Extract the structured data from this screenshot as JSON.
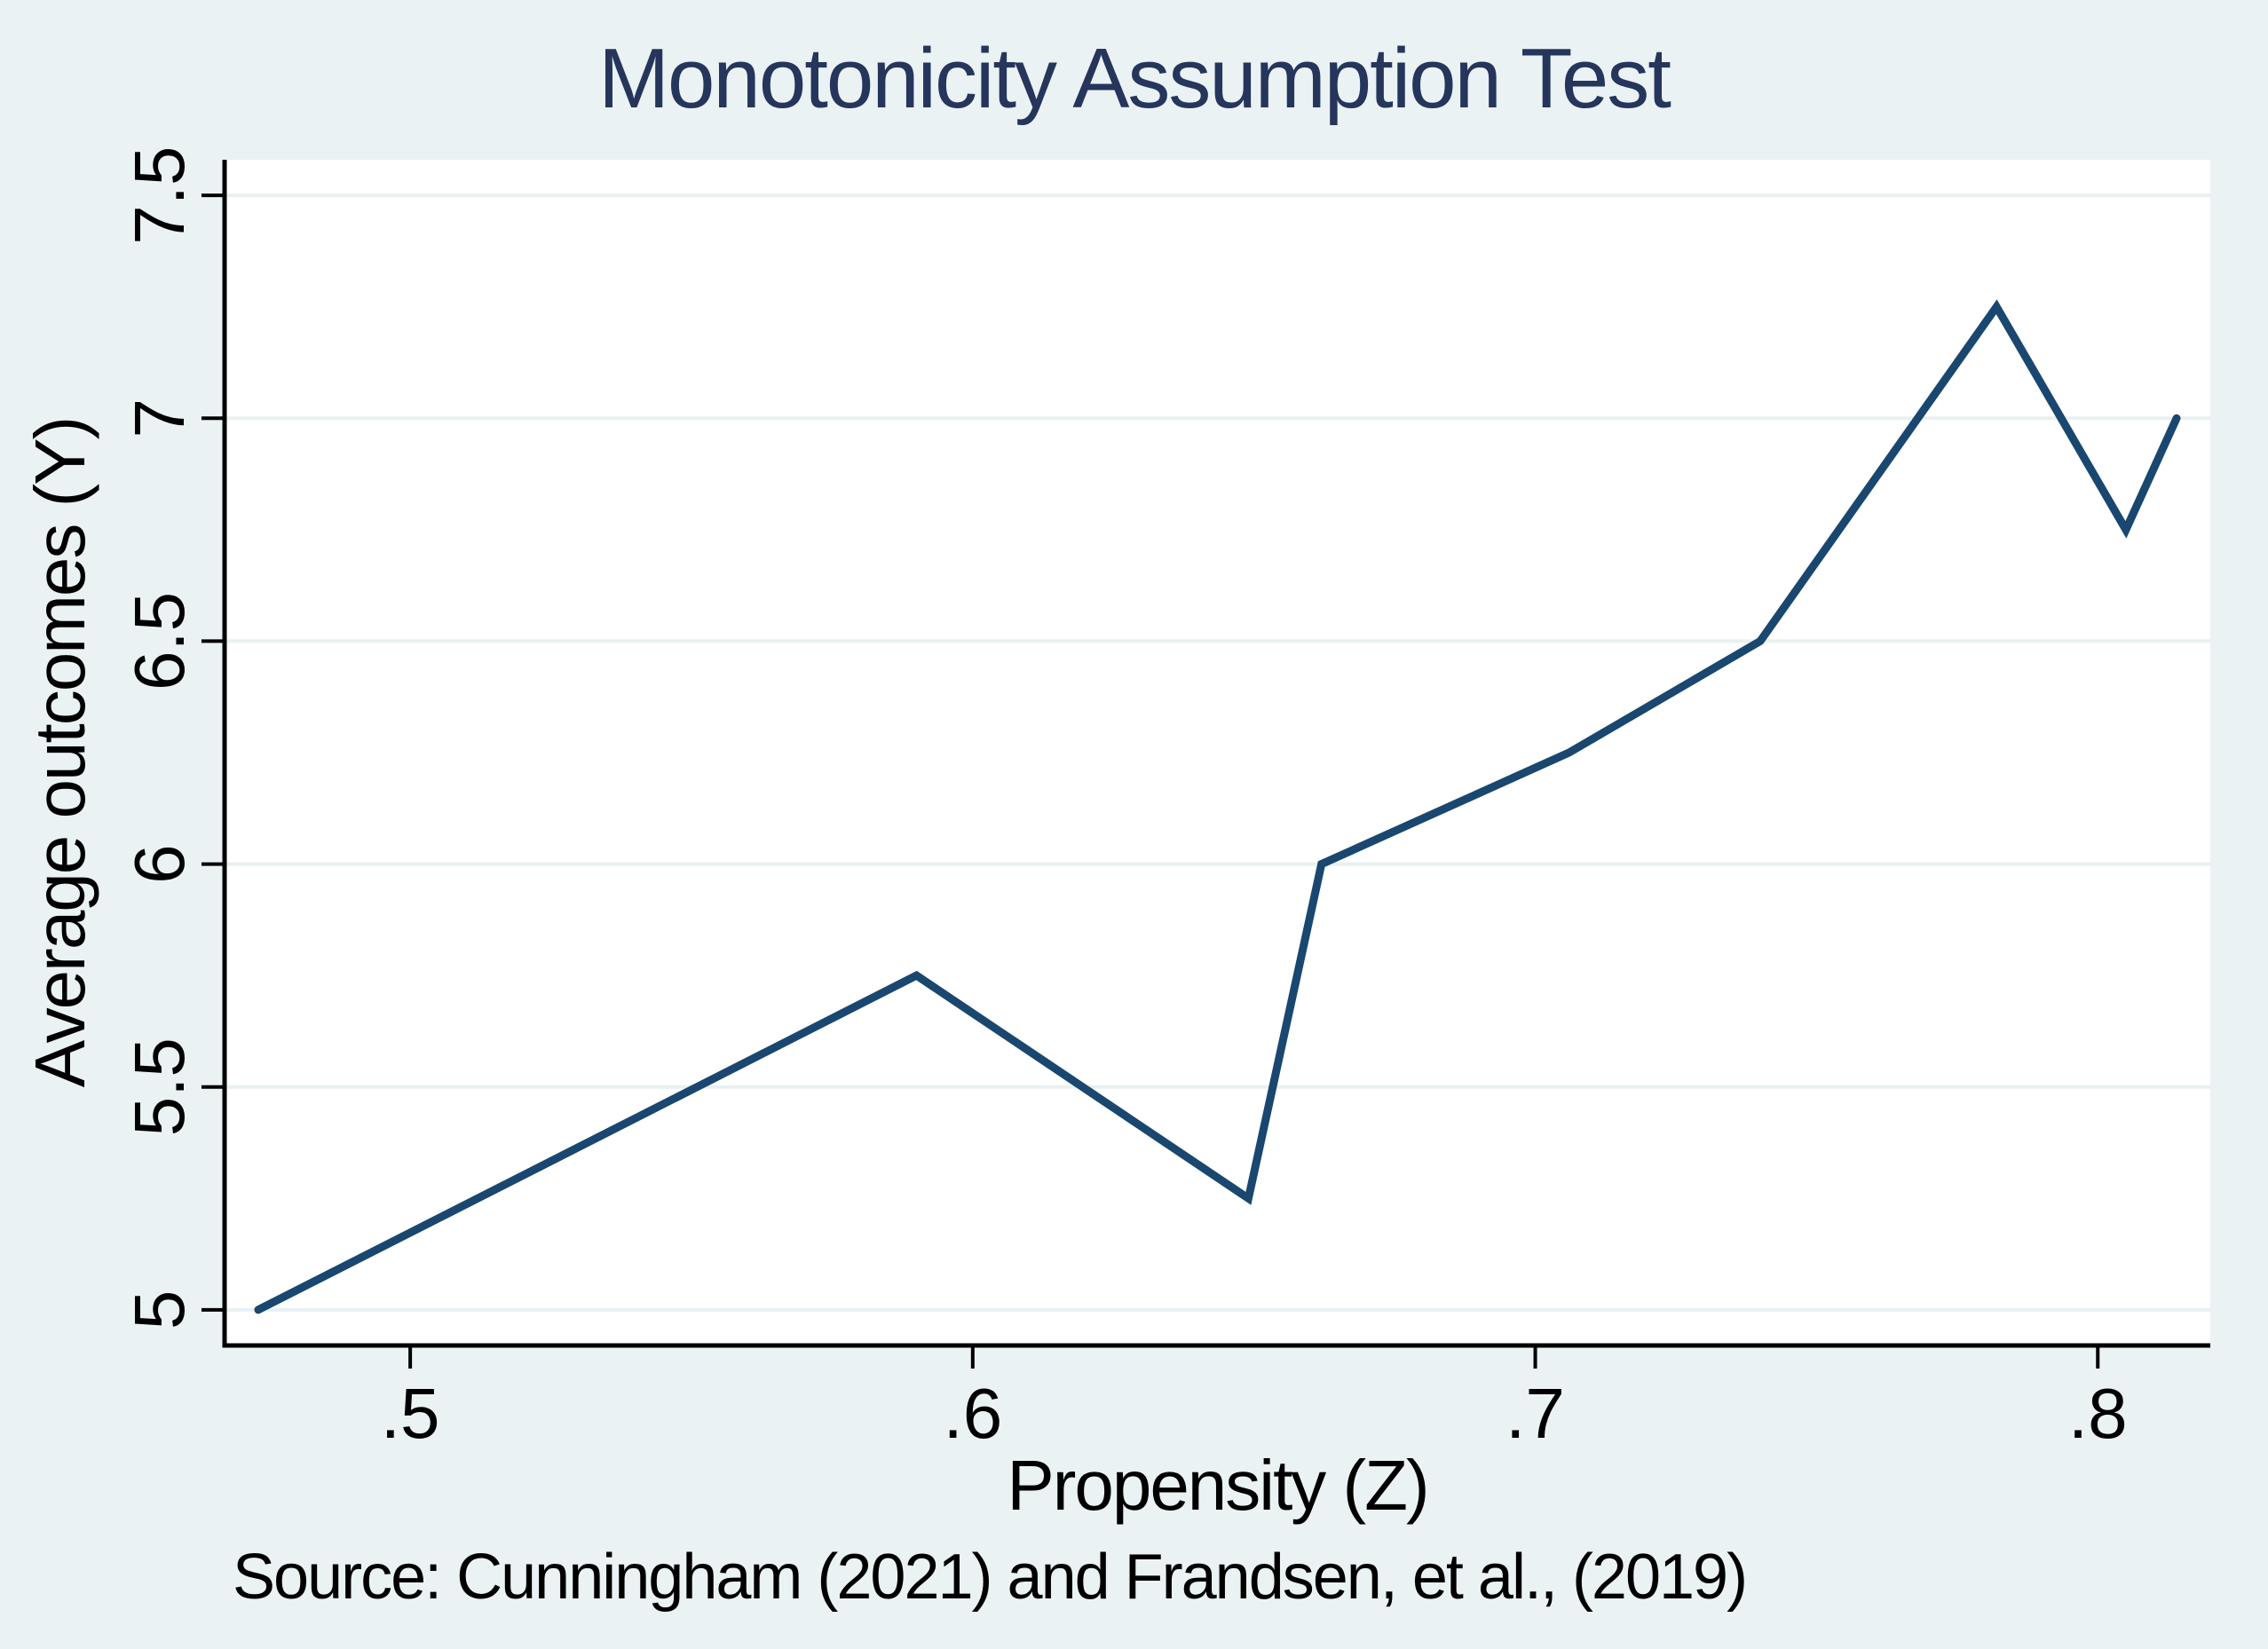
{
  "figure": {
    "title": "Monotonicity Assumption Test",
    "source_note": "Source: Cunningham (2021) and Frandsen, et al., (2019)",
    "colors": {
      "background": "#EAF2F3",
      "plot_background": "#FFFFFF",
      "gridline": "#E8F1F2",
      "axis": "#000000",
      "title_text": "#25355C",
      "body_text": "#000000",
      "line": "#1A476F"
    }
  },
  "chart_data": {
    "type": "line",
    "title": "Monotonicity Assumption Test",
    "xlabel": "Propensity (Z)",
    "ylabel": "Average outcomes (Y)",
    "series": [
      {
        "name": "Average outcomes (Y)",
        "x": [
          0.473,
          0.59,
          0.649,
          0.662,
          0.706,
          0.74,
          0.782,
          0.805,
          0.814
        ],
        "y": [
          5.0,
          5.75,
          5.25,
          6.0,
          6.25,
          6.5,
          7.25,
          6.75,
          7.0
        ],
        "color": "#1A476F"
      }
    ],
    "xlim": [
      0.467,
      0.82
    ],
    "ylim": [
      4.92,
      7.58
    ],
    "xticks": [
      0.5,
      0.6,
      0.7,
      0.8
    ],
    "xtick_labels": [
      ".5",
      ".6",
      ".7",
      ".8"
    ],
    "yticks": [
      5,
      5.5,
      6,
      6.5,
      7,
      7.5
    ],
    "ytick_labels": [
      "5",
      "5.5",
      "6",
      "6.5",
      "7",
      "7.5"
    ],
    "ytick_label_rotation": -90,
    "grid": "horizontal-only",
    "legend": "none",
    "source_note": "Source: Cunningham (2021) and Frandsen, et al., (2019)"
  }
}
